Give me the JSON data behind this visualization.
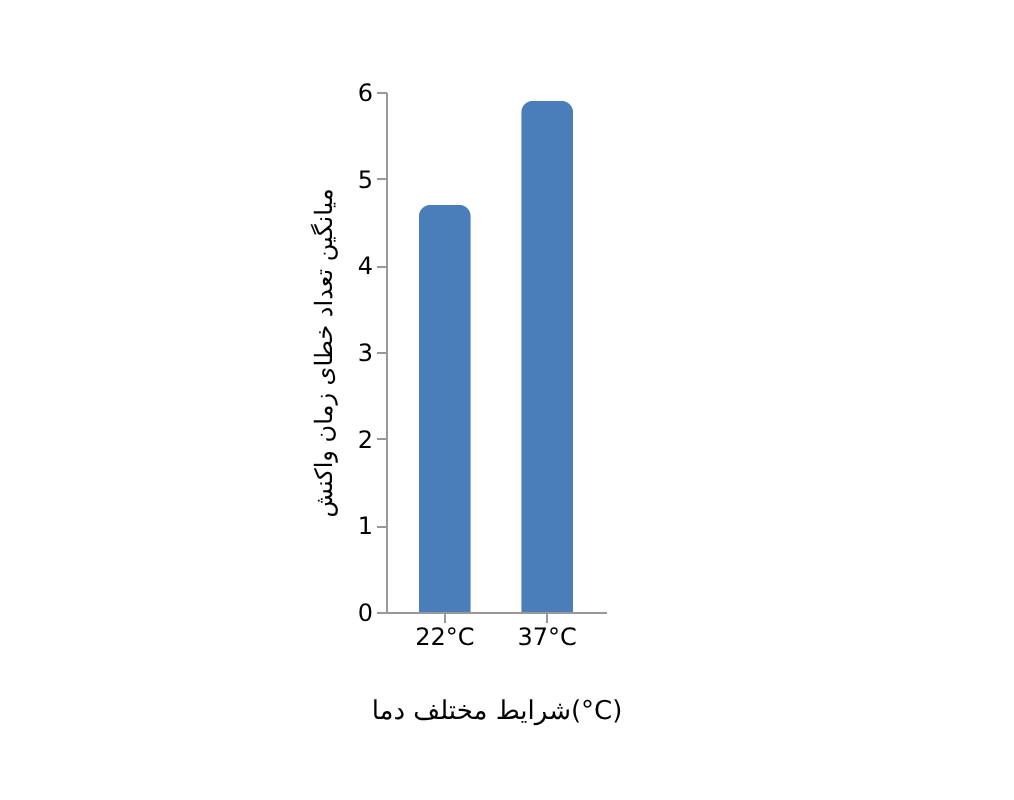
{
  "chart_data": {
    "type": "bar",
    "categories": [
      "22°C",
      "37°C"
    ],
    "values": [
      4.7,
      5.9
    ],
    "color": "#4a7ebb",
    "xlabel": "شرایط مختلف دما(°C)",
    "ylabel": "میانگین  تعداد خطای زمان واکنش",
    "ylim": [
      0,
      6
    ],
    "yticks": [
      0,
      1,
      2,
      3,
      4,
      5,
      6
    ],
    "grid": false
  }
}
